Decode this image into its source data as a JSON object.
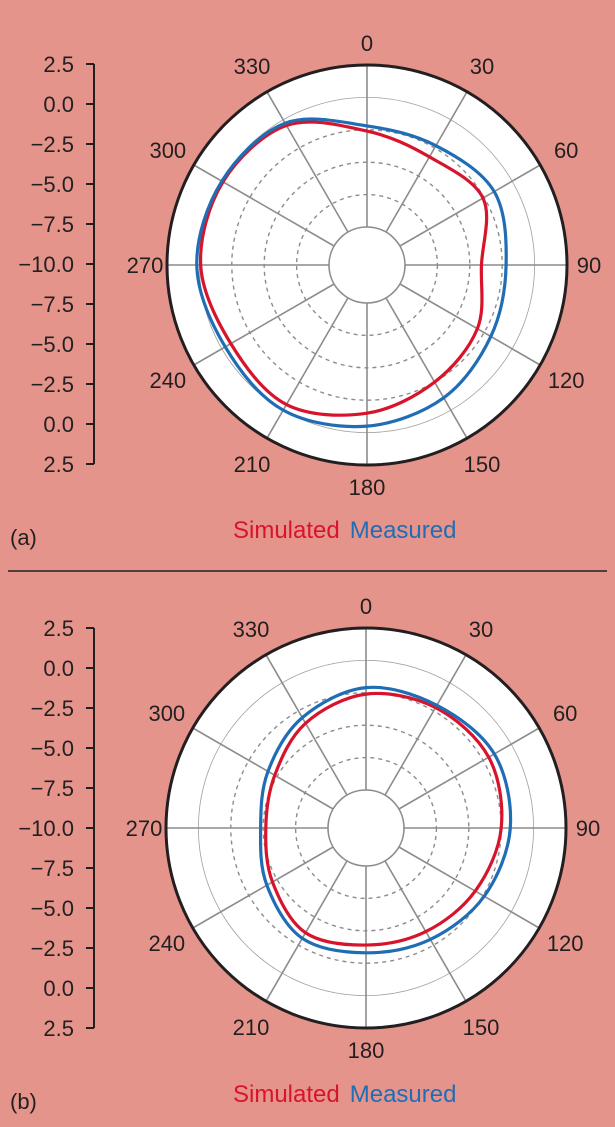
{
  "colors": {
    "background": "#e5948c",
    "simulated": "#d7142b",
    "measured": "#1f6db5",
    "grid": "#8c8c8c",
    "frame": "#231f20"
  },
  "chart_data": [
    {
      "type": "polar-line",
      "panel_label": "(a)",
      "radial_ticks": [
        "2.5",
        "0.0",
        "−2.5",
        "−5.0",
        "−7.5",
        "−10.0",
        "−7.5",
        "−5.0",
        "−2.5",
        "0.0",
        "2.5"
      ],
      "angle_ticks": [
        "0",
        "30",
        "60",
        "90",
        "120",
        "150",
        "180",
        "210",
        "240",
        "270",
        "300",
        "330"
      ],
      "rlim": [
        -10,
        2.5
      ],
      "grid": true,
      "legend_position": "bottom",
      "angles_deg": [
        0,
        30,
        60,
        90,
        120,
        150,
        180,
        210,
        240,
        270,
        300,
        330
      ],
      "series": [
        {
          "name": "Simulated",
          "color": "#d7142b",
          "values": [
            -2.6,
            -3.3,
            -2.6,
            -4.1,
            -3.1,
            -2.5,
            -1.5,
            -0.5,
            -0.8,
            -0.1,
            -0.1,
            -0.5
          ]
        },
        {
          "name": "Measured",
          "color": "#1f6db5",
          "values": [
            -2.2,
            -2.3,
            -1.6,
            -2.2,
            -1.9,
            -1.1,
            -0.5,
            0.0,
            -0.3,
            0.2,
            0.0,
            -0.3
          ]
        }
      ]
    },
    {
      "type": "polar-line",
      "panel_label": "(b)",
      "radial_ticks": [
        "2.5",
        "0.0",
        "−2.5",
        "−5.0",
        "−7.5",
        "−10.0",
        "−7.5",
        "−5.0",
        "−2.5",
        "0.0",
        "2.5"
      ],
      "angle_ticks": [
        "0",
        "30",
        "60",
        "90",
        "120",
        "150",
        "180",
        "210",
        "240",
        "270",
        "300",
        "330"
      ],
      "rlim": [
        -10,
        2.5
      ],
      "grid": true,
      "legend_position": "bottom",
      "angles_deg": [
        0,
        30,
        60,
        90,
        120,
        150,
        180,
        210,
        240,
        270,
        300,
        330
      ],
      "series": [
        {
          "name": "Simulated",
          "color": "#d7142b",
          "values": [
            -2.6,
            -2.2,
            -2.0,
            -2.5,
            -3.2,
            -3.7,
            -3.9,
            -3.6,
            -4.6,
            -5.2,
            -4.8,
            -3.6
          ]
        },
        {
          "name": "Measured",
          "color": "#1f6db5",
          "values": [
            -2.1,
            -2.0,
            -1.5,
            -1.8,
            -2.4,
            -3.0,
            -3.3,
            -3.1,
            -4.1,
            -4.8,
            -4.2,
            -3.1
          ]
        }
      ]
    }
  ]
}
